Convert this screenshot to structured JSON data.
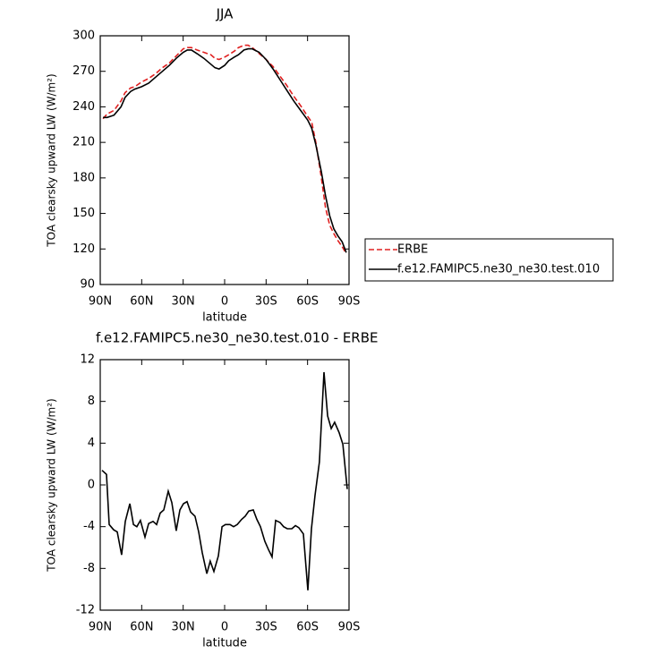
{
  "chart_data": [
    {
      "type": "line",
      "title": "JJA",
      "xlabel": "latitude",
      "ylabel": "TOA clearsky upward LW (W/m²)",
      "xlim": [
        90,
        -90
      ],
      "xticks": [
        {
          "value": 90,
          "label": "90N"
        },
        {
          "value": 60,
          "label": "60N"
        },
        {
          "value": 30,
          "label": "30N"
        },
        0,
        {
          "value": -30,
          "label": "30S"
        },
        {
          "value": -60,
          "label": "60S"
        },
        {
          "value": -90,
          "label": "90S"
        }
      ],
      "ylim": [
        90,
        300
      ],
      "yticks": [
        90,
        120,
        150,
        180,
        210,
        240,
        270,
        300
      ],
      "legend": "right",
      "grid": false,
      "x": [
        88,
        85,
        80,
        75,
        72,
        68,
        65,
        60,
        55,
        50,
        45,
        40,
        35,
        30,
        27,
        24,
        20,
        15,
        10,
        7,
        4,
        0,
        -3,
        -7,
        -10,
        -14,
        -17,
        -20,
        -25,
        -30,
        -35,
        -40,
        -45,
        -50,
        -55,
        -60,
        -63,
        -66,
        -70,
        -73,
        -76,
        -79,
        -82,
        -85,
        -88
      ],
      "series": [
        {
          "name": "ERBE",
          "color": "#e02020",
          "linestyle": "dashed",
          "values": [
            230,
            234,
            237,
            245,
            252,
            256,
            257,
            261,
            264,
            268,
            273,
            277,
            283,
            289,
            290,
            290,
            288,
            286,
            284,
            281,
            280,
            282,
            284,
            287,
            290,
            292,
            292,
            290,
            285,
            280,
            274,
            266,
            258,
            249,
            241,
            232,
            227,
            210,
            180,
            155,
            140,
            133,
            127,
            122,
            116
          ]
        },
        {
          "name": "f.e12.FAMIPC5.ne30_ne30.test.010",
          "color": "#000000",
          "linestyle": "solid",
          "values": [
            231,
            231,
            233,
            240,
            248,
            253,
            255,
            257,
            260,
            265,
            270,
            275,
            281,
            286,
            288,
            288,
            285,
            281,
            276,
            273,
            272,
            275,
            279,
            282,
            284,
            288,
            289,
            289,
            286,
            280,
            272,
            263,
            254,
            245,
            237,
            229,
            222,
            208,
            185,
            165,
            148,
            137,
            131,
            126,
            117
          ]
        }
      ]
    },
    {
      "type": "line",
      "title": "f.e12.FAMIPC5.ne30_ne30.test.010 - ERBE",
      "xlabel": "latitude",
      "ylabel": "TOA clearsky upward LW (W/m²)",
      "xlim": [
        90,
        -90
      ],
      "xticks": [
        {
          "value": 90,
          "label": "90N"
        },
        {
          "value": 60,
          "label": "60N"
        },
        {
          "value": 30,
          "label": "30N"
        },
        0,
        {
          "value": -30,
          "label": "30S"
        },
        {
          "value": -60,
          "label": "60S"
        },
        {
          "value": -90,
          "label": "90S"
        }
      ],
      "ylim": [
        -12,
        12
      ],
      "yticks": [
        -12,
        -8,
        -4,
        0,
        4,
        8,
        12
      ],
      "grid": false,
      "color": "#000000",
      "x": [
        88.7,
        85.5,
        83.5,
        80.3,
        77.7,
        74.5,
        71.9,
        68.6,
        66.0,
        63.5,
        60.9,
        57.6,
        55.0,
        51.8,
        49.2,
        46.6,
        44.0,
        40.8,
        38.2,
        35.0,
        32.4,
        29.8,
        27.2,
        24.6,
        21.4,
        18.8,
        16.2,
        12.9,
        10.4,
        7.8,
        4.5,
        1.9,
        -0.6,
        -3.9,
        -6.5,
        -9.1,
        -12.3,
        -14.9,
        -17.5,
        -20.7,
        -23.3,
        -25.9,
        -29.1,
        -31.7,
        -34.3,
        -36.9,
        -40.1,
        -42.7,
        -45.3,
        -48.6,
        -51.2,
        -53.7,
        -57.0,
        -60.2,
        -62.8,
        -65.4,
        -68.6,
        -71.9,
        -74.5,
        -77.1,
        -79.6,
        -82.9,
        -85.5,
        -88.7
      ],
      "values": [
        1.4,
        1,
        -3.8,
        -4.3,
        -4.5,
        -6.7,
        -3.5,
        -1.8,
        -3.8,
        -4,
        -3.4,
        -5,
        -3.7,
        -3.5,
        -3.8,
        -2.7,
        -2.4,
        -0.6,
        -1.7,
        -4.4,
        -2.4,
        -1.8,
        -1.6,
        -2.6,
        -3,
        -4.5,
        -6.5,
        -8.5,
        -7.3,
        -8.3,
        -6.8,
        -4,
        -3.8,
        -3.8,
        -4,
        -3.8,
        -3.3,
        -3,
        -2.5,
        -2.4,
        -3.3,
        -4,
        -5.4,
        -6.2,
        -6.9,
        -3.4,
        -3.6,
        -4,
        -4.2,
        -4.2,
        -3.9,
        -4.1,
        -4.7,
        -10.1,
        -4.2,
        -1,
        2.2,
        10.8,
        6.6,
        5.4,
        6,
        5,
        3.9,
        -0.4
      ]
    }
  ]
}
